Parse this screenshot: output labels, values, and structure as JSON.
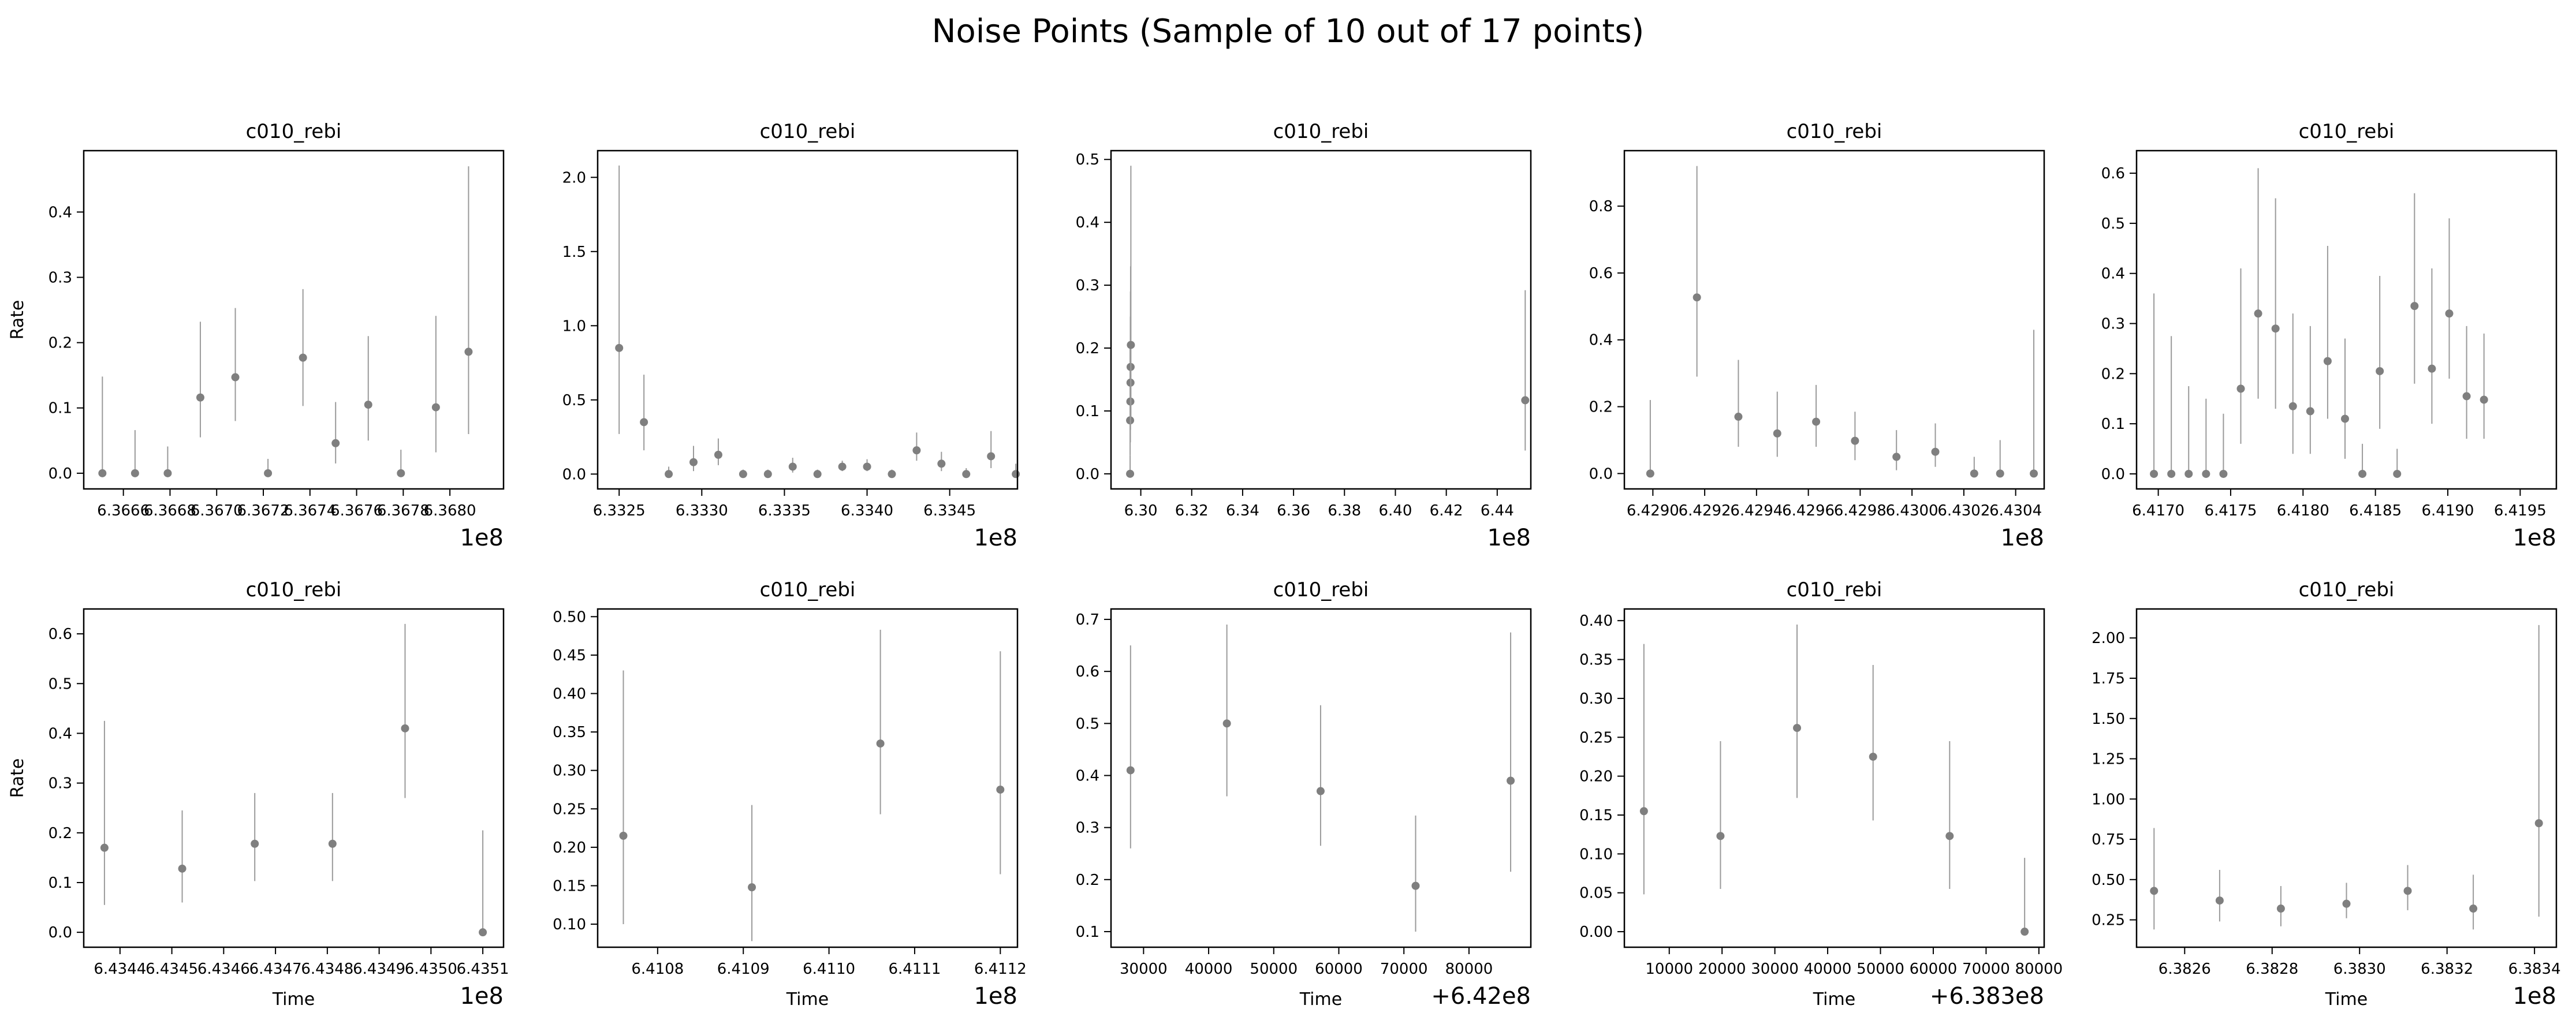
{
  "title": "Noise Points (Sample of 10 out of 17 points)",
  "colors": {
    "marker": "#7f7f7f",
    "errorbar": "#9a9a9a",
    "axes": "#000000"
  },
  "chart_data": [
    {
      "type": "scatter",
      "title": "c010_rebi",
      "xlabel": "",
      "ylabel": "Rate",
      "offset_text": "1e8",
      "xlim": [
        6.36643,
        6.36823
      ],
      "ylim": [
        -0.024,
        0.494
      ],
      "xticks": [
        6.3666,
        6.3668,
        6.367,
        6.3672,
        6.3674,
        6.3676,
        6.3678,
        6.368
      ],
      "xticklabels": [
        "6.3666",
        "6.3668",
        "6.3670",
        "6.3672",
        "6.3674",
        "6.3676",
        "6.3678",
        "6.3680"
      ],
      "yticks": [
        0,
        0.1,
        0.2,
        0.3,
        0.4
      ],
      "yticklabels": [
        "0.0",
        "0.1",
        "0.2",
        "0.3",
        "0.4"
      ],
      "points": [
        {
          "x": 6.36651,
          "y": 0.0,
          "lo": 0.0,
          "hi": 0.148
        },
        {
          "x": 6.36665,
          "y": 0.0,
          "lo": 0.0,
          "hi": 0.066
        },
        {
          "x": 6.36679,
          "y": 0.0,
          "lo": 0.0,
          "hi": 0.041
        },
        {
          "x": 6.36693,
          "y": 0.116,
          "lo": 0.055,
          "hi": 0.232
        },
        {
          "x": 6.36708,
          "y": 0.147,
          "lo": 0.08,
          "hi": 0.253
        },
        {
          "x": 6.36722,
          "y": 0.0,
          "lo": 0.0,
          "hi": 0.022
        },
        {
          "x": 6.36737,
          "y": 0.177,
          "lo": 0.103,
          "hi": 0.282
        },
        {
          "x": 6.36751,
          "y": 0.046,
          "lo": 0.015,
          "hi": 0.109
        },
        {
          "x": 6.36765,
          "y": 0.105,
          "lo": 0.05,
          "hi": 0.21
        },
        {
          "x": 6.36779,
          "y": 0.0,
          "lo": 0.0,
          "hi": 0.036
        },
        {
          "x": 6.36794,
          "y": 0.101,
          "lo": 0.032,
          "hi": 0.241
        },
        {
          "x": 6.36808,
          "y": 0.186,
          "lo": 0.06,
          "hi": 0.47
        }
      ]
    },
    {
      "type": "scatter",
      "title": "c010_rebi",
      "xlabel": "",
      "ylabel": "",
      "offset_text": "1e8",
      "xlim": [
        6.33237,
        6.33491
      ],
      "ylim": [
        -0.1,
        2.18
      ],
      "xticks": [
        6.3325,
        6.333,
        6.3335,
        6.334,
        6.3345
      ],
      "xticklabels": [
        "6.3325",
        "6.3330",
        "6.3335",
        "6.3340",
        "6.3345"
      ],
      "yticks": [
        0,
        0.5,
        1.0,
        1.5,
        2.0
      ],
      "yticklabels": [
        "0.0",
        "0.5",
        "1.0",
        "1.5",
        "2.0"
      ],
      "points": [
        {
          "x": 6.3325,
          "y": 0.85,
          "lo": 0.27,
          "hi": 2.08
        },
        {
          "x": 6.33265,
          "y": 0.35,
          "lo": 0.16,
          "hi": 0.67
        },
        {
          "x": 6.3328,
          "y": 0.0,
          "lo": 0.0,
          "hi": 0.05
        },
        {
          "x": 6.33295,
          "y": 0.08,
          "lo": 0.02,
          "hi": 0.19
        },
        {
          "x": 6.3331,
          "y": 0.13,
          "lo": 0.06,
          "hi": 0.24
        },
        {
          "x": 6.33325,
          "y": 0.0,
          "lo": 0.0,
          "hi": 0.03
        },
        {
          "x": 6.3334,
          "y": 0.0,
          "lo": 0.0,
          "hi": 0.03
        },
        {
          "x": 6.33355,
          "y": 0.05,
          "lo": 0.01,
          "hi": 0.11
        },
        {
          "x": 6.3337,
          "y": 0.0,
          "lo": 0.0,
          "hi": 0.03
        },
        {
          "x": 6.33385,
          "y": 0.05,
          "lo": 0.02,
          "hi": 0.09
        },
        {
          "x": 6.334,
          "y": 0.05,
          "lo": 0.02,
          "hi": 0.1
        },
        {
          "x": 6.33415,
          "y": 0.0,
          "lo": 0.0,
          "hi": 0.03
        },
        {
          "x": 6.3343,
          "y": 0.16,
          "lo": 0.09,
          "hi": 0.28
        },
        {
          "x": 6.33445,
          "y": 0.07,
          "lo": 0.02,
          "hi": 0.15
        },
        {
          "x": 6.3346,
          "y": 0.0,
          "lo": 0.0,
          "hi": 0.04
        },
        {
          "x": 6.33475,
          "y": 0.12,
          "lo": 0.04,
          "hi": 0.29
        },
        {
          "x": 6.3349,
          "y": 0.0,
          "lo": 0.0,
          "hi": 0.07
        }
      ]
    },
    {
      "type": "scatter",
      "title": "c010_rebi",
      "xlabel": "",
      "ylabel": "",
      "offset_text": "1e8",
      "xlim": [
        6.2883,
        6.4532
      ],
      "ylim": [
        -0.024,
        0.514
      ],
      "xticks": [
        6.3,
        6.32,
        6.34,
        6.36,
        6.38,
        6.4,
        6.42,
        6.44
      ],
      "xticklabels": [
        "6.30",
        "6.32",
        "6.34",
        "6.36",
        "6.38",
        "6.40",
        "6.42",
        "6.44"
      ],
      "yticks": [
        0,
        0.1,
        0.2,
        0.3,
        0.4,
        0.5
      ],
      "yticklabels": [
        "0.0",
        "0.1",
        "0.2",
        "0.3",
        "0.4",
        "0.5"
      ],
      "points": [
        {
          "x": 6.2958,
          "y": 0.0,
          "lo": 0.0,
          "hi": 0.03
        },
        {
          "x": 6.2958,
          "y": 0.085,
          "lo": 0.03,
          "hi": 0.2
        },
        {
          "x": 6.2959,
          "y": 0.115,
          "lo": 0.05,
          "hi": 0.25
        },
        {
          "x": 6.29595,
          "y": 0.145,
          "lo": 0.07,
          "hi": 0.29
        },
        {
          "x": 6.296,
          "y": 0.17,
          "lo": 0.08,
          "hi": 0.33
        },
        {
          "x": 6.2961,
          "y": 0.205,
          "lo": 0.09,
          "hi": 0.49
        },
        {
          "x": 6.451,
          "y": 0.117,
          "lo": 0.037,
          "hi": 0.292
        }
      ]
    },
    {
      "type": "scatter",
      "title": "c010_rebi",
      "xlabel": "",
      "ylabel": "",
      "offset_text": "1e8",
      "xlim": [
        6.42889,
        6.43051
      ],
      "ylim": [
        -0.046,
        0.966
      ],
      "xticks": [
        6.429,
        6.4292,
        6.4294,
        6.4296,
        6.4298,
        6.43,
        6.4302,
        6.4304
      ],
      "xticklabels": [
        "6.4290",
        "6.4292",
        "6.4294",
        "6.4296",
        "6.4298",
        "6.4300",
        "6.4302",
        "6.4304"
      ],
      "yticks": [
        0,
        0.2,
        0.4,
        0.6,
        0.8
      ],
      "yticklabels": [
        "0.0",
        "0.2",
        "0.4",
        "0.6",
        "0.8"
      ],
      "points": [
        {
          "x": 6.42899,
          "y": 0.0,
          "lo": 0.0,
          "hi": 0.22
        },
        {
          "x": 6.42917,
          "y": 0.527,
          "lo": 0.29,
          "hi": 0.92
        },
        {
          "x": 6.42933,
          "y": 0.17,
          "lo": 0.08,
          "hi": 0.34
        },
        {
          "x": 6.42948,
          "y": 0.12,
          "lo": 0.05,
          "hi": 0.245
        },
        {
          "x": 6.42963,
          "y": 0.155,
          "lo": 0.08,
          "hi": 0.265
        },
        {
          "x": 6.42978,
          "y": 0.098,
          "lo": 0.04,
          "hi": 0.185
        },
        {
          "x": 6.42994,
          "y": 0.05,
          "lo": 0.01,
          "hi": 0.13
        },
        {
          "x": 6.43009,
          "y": 0.065,
          "lo": 0.02,
          "hi": 0.15
        },
        {
          "x": 6.43024,
          "y": 0.0,
          "lo": 0.0,
          "hi": 0.05
        },
        {
          "x": 6.43034,
          "y": 0.0,
          "lo": 0.0,
          "hi": 0.1
        },
        {
          "x": 6.43047,
          "y": 0.0,
          "lo": 0.0,
          "hi": 0.43
        }
      ]
    },
    {
      "type": "scatter",
      "title": "c010_rebi",
      "xlabel": "",
      "ylabel": "",
      "offset_text": "1e8",
      "xlim": [
        6.41685,
        6.41975
      ],
      "ylim": [
        -0.03,
        0.645
      ],
      "xticks": [
        6.417,
        6.4175,
        6.418,
        6.4185,
        6.419,
        6.4195
      ],
      "xticklabels": [
        "6.4170",
        "6.4175",
        "6.4180",
        "6.4185",
        "6.4190",
        "6.4195"
      ],
      "yticks": [
        0,
        0.1,
        0.2,
        0.3,
        0.4,
        0.5,
        0.6
      ],
      "yticklabels": [
        "0.0",
        "0.1",
        "0.2",
        "0.3",
        "0.4",
        "0.5",
        "0.6"
      ],
      "points": [
        {
          "x": 6.41697,
          "y": 0.0,
          "lo": 0.0,
          "hi": 0.36
        },
        {
          "x": 6.41709,
          "y": 0.0,
          "lo": 0.0,
          "hi": 0.275
        },
        {
          "x": 6.41721,
          "y": 0.0,
          "lo": 0.0,
          "hi": 0.175
        },
        {
          "x": 6.41733,
          "y": 0.0,
          "lo": 0.0,
          "hi": 0.15
        },
        {
          "x": 6.41745,
          "y": 0.0,
          "lo": 0.0,
          "hi": 0.12
        },
        {
          "x": 6.41757,
          "y": 0.17,
          "lo": 0.06,
          "hi": 0.41
        },
        {
          "x": 6.41769,
          "y": 0.32,
          "lo": 0.15,
          "hi": 0.61
        },
        {
          "x": 6.41781,
          "y": 0.29,
          "lo": 0.13,
          "hi": 0.55
        },
        {
          "x": 6.41793,
          "y": 0.135,
          "lo": 0.04,
          "hi": 0.32
        },
        {
          "x": 6.41805,
          "y": 0.125,
          "lo": 0.04,
          "hi": 0.295
        },
        {
          "x": 6.41817,
          "y": 0.225,
          "lo": 0.11,
          "hi": 0.455
        },
        {
          "x": 6.41829,
          "y": 0.11,
          "lo": 0.03,
          "hi": 0.27
        },
        {
          "x": 6.41841,
          "y": 0.0,
          "lo": 0.0,
          "hi": 0.06
        },
        {
          "x": 6.41853,
          "y": 0.205,
          "lo": 0.09,
          "hi": 0.395
        },
        {
          "x": 6.41865,
          "y": 0.0,
          "lo": 0.0,
          "hi": 0.05
        },
        {
          "x": 6.41877,
          "y": 0.335,
          "lo": 0.18,
          "hi": 0.56
        },
        {
          "x": 6.41889,
          "y": 0.21,
          "lo": 0.1,
          "hi": 0.41
        },
        {
          "x": 6.41901,
          "y": 0.32,
          "lo": 0.19,
          "hi": 0.51
        },
        {
          "x": 6.41913,
          "y": 0.155,
          "lo": 0.07,
          "hi": 0.295
        },
        {
          "x": 6.41925,
          "y": 0.148,
          "lo": 0.07,
          "hi": 0.28
        }
      ]
    },
    {
      "type": "scatter",
      "title": "c010_rebi",
      "xlabel": "Time",
      "ylabel": "Rate",
      "offset_text": "1e8",
      "xlim": [
        6.43433,
        6.43514
      ],
      "ylim": [
        -0.03,
        0.65
      ],
      "xticks": [
        6.4344,
        6.4345,
        6.4346,
        6.4347,
        6.4348,
        6.4349,
        6.435,
        6.4351
      ],
      "xticklabels": [
        "6.4344",
        "6.4345",
        "6.4346",
        "6.4347",
        "6.4348",
        "6.4349",
        "6.4350",
        "6.4351"
      ],
      "yticks": [
        0,
        0.1,
        0.2,
        0.3,
        0.4,
        0.5,
        0.6
      ],
      "yticklabels": [
        "0.0",
        "0.1",
        "0.2",
        "0.3",
        "0.4",
        "0.5",
        "0.6"
      ],
      "points": [
        {
          "x": 6.43437,
          "y": 0.17,
          "lo": 0.055,
          "hi": 0.425
        },
        {
          "x": 6.43452,
          "y": 0.128,
          "lo": 0.06,
          "hi": 0.245
        },
        {
          "x": 6.43466,
          "y": 0.178,
          "lo": 0.103,
          "hi": 0.28
        },
        {
          "x": 6.43481,
          "y": 0.178,
          "lo": 0.103,
          "hi": 0.28
        },
        {
          "x": 6.43495,
          "y": 0.41,
          "lo": 0.27,
          "hi": 0.62
        },
        {
          "x": 6.4351,
          "y": 0.0,
          "lo": 0.0,
          "hi": 0.205
        }
      ]
    },
    {
      "type": "scatter",
      "title": "c010_rebi",
      "xlabel": "Time",
      "ylabel": "",
      "offset_text": "1e8",
      "xlim": [
        6.41073,
        6.41122
      ],
      "ylim": [
        0.07,
        0.51
      ],
      "xticks": [
        6.4108,
        6.4109,
        6.411,
        6.4111,
        6.4112
      ],
      "xticklabels": [
        "6.4108",
        "6.4109",
        "6.4110",
        "6.4111",
        "6.4112"
      ],
      "yticks": [
        0.1,
        0.15,
        0.2,
        0.25,
        0.3,
        0.35,
        0.4,
        0.45,
        0.5
      ],
      "yticklabels": [
        "0.10",
        "0.15",
        "0.20",
        "0.25",
        "0.30",
        "0.35",
        "0.40",
        "0.45",
        "0.50"
      ],
      "points": [
        {
          "x": 6.41076,
          "y": 0.215,
          "lo": 0.1,
          "hi": 0.43
        },
        {
          "x": 6.41091,
          "y": 0.148,
          "lo": 0.078,
          "hi": 0.255
        },
        {
          "x": 6.41106,
          "y": 0.335,
          "lo": 0.243,
          "hi": 0.483
        },
        {
          "x": 6.4112,
          "y": 0.275,
          "lo": 0.165,
          "hi": 0.455
        }
      ]
    },
    {
      "type": "scatter",
      "title": "c010_rebi",
      "xlabel": "Time",
      "ylabel": "",
      "offset_text": "+6.42e8",
      "xlim": [
        25000,
        89500
      ],
      "ylim": [
        0.07,
        0.72
      ],
      "xticks": [
        30000,
        40000,
        50000,
        60000,
        70000,
        80000
      ],
      "xticklabels": [
        "30000",
        "40000",
        "50000",
        "60000",
        "70000",
        "80000"
      ],
      "yticks": [
        0.1,
        0.2,
        0.3,
        0.4,
        0.5,
        0.6,
        0.7
      ],
      "yticklabels": [
        "0.1",
        "0.2",
        "0.3",
        "0.4",
        "0.5",
        "0.6",
        "0.7"
      ],
      "points": [
        {
          "x": 28000,
          "y": 0.41,
          "lo": 0.26,
          "hi": 0.65
        },
        {
          "x": 42800,
          "y": 0.5,
          "lo": 0.36,
          "hi": 0.69
        },
        {
          "x": 57200,
          "y": 0.37,
          "lo": 0.265,
          "hi": 0.535
        },
        {
          "x": 71800,
          "y": 0.188,
          "lo": 0.1,
          "hi": 0.323
        },
        {
          "x": 86400,
          "y": 0.39,
          "lo": 0.215,
          "hi": 0.675
        }
      ]
    },
    {
      "type": "scatter",
      "title": "c010_rebi",
      "xlabel": "Time",
      "ylabel": "",
      "offset_text": "+6.383e8",
      "xlim": [
        1500,
        81000
      ],
      "ylim": [
        -0.02,
        0.415
      ],
      "xticks": [
        10000,
        20000,
        30000,
        40000,
        50000,
        60000,
        70000,
        80000
      ],
      "xticklabels": [
        "10000",
        "20000",
        "30000",
        "40000",
        "50000",
        "60000",
        "70000",
        "80000"
      ],
      "yticks": [
        0,
        0.05,
        0.1,
        0.15,
        0.2,
        0.25,
        0.3,
        0.35,
        0.4
      ],
      "yticklabels": [
        "0.00",
        "0.05",
        "0.10",
        "0.15",
        "0.20",
        "0.25",
        "0.30",
        "0.35",
        "0.40"
      ],
      "points": [
        {
          "x": 5200,
          "y": 0.155,
          "lo": 0.048,
          "hi": 0.37
        },
        {
          "x": 19700,
          "y": 0.123,
          "lo": 0.055,
          "hi": 0.245
        },
        {
          "x": 34200,
          "y": 0.262,
          "lo": 0.172,
          "hi": 0.395
        },
        {
          "x": 48600,
          "y": 0.225,
          "lo": 0.143,
          "hi": 0.343
        },
        {
          "x": 63100,
          "y": 0.123,
          "lo": 0.055,
          "hi": 0.245
        },
        {
          "x": 77300,
          "y": 0.0,
          "lo": 0.0,
          "hi": 0.095
        }
      ]
    },
    {
      "type": "scatter",
      "title": "c010_rebi",
      "xlabel": "Time",
      "ylabel": "",
      "offset_text": "1e8",
      "xlim": [
        6.38249,
        6.38345
      ],
      "ylim": [
        0.08,
        2.18
      ],
      "xticks": [
        6.3826,
        6.3828,
        6.383,
        6.3832,
        6.3834
      ],
      "xticklabels": [
        "6.3826",
        "6.3828",
        "6.3830",
        "6.3832",
        "6.3834"
      ],
      "yticks": [
        0.25,
        0.5,
        0.75,
        1.0,
        1.25,
        1.5,
        1.75,
        2.0
      ],
      "yticklabels": [
        "0.25",
        "0.50",
        "0.75",
        "1.00",
        "1.25",
        "1.50",
        "1.75",
        "2.00"
      ],
      "points": [
        {
          "x": 6.38253,
          "y": 0.43,
          "lo": 0.19,
          "hi": 0.82
        },
        {
          "x": 6.38268,
          "y": 0.37,
          "lo": 0.24,
          "hi": 0.56
        },
        {
          "x": 6.38282,
          "y": 0.32,
          "lo": 0.21,
          "hi": 0.46
        },
        {
          "x": 6.38297,
          "y": 0.35,
          "lo": 0.26,
          "hi": 0.48
        },
        {
          "x": 6.38311,
          "y": 0.43,
          "lo": 0.31,
          "hi": 0.59
        },
        {
          "x": 6.38326,
          "y": 0.32,
          "lo": 0.19,
          "hi": 0.53
        },
        {
          "x": 6.38341,
          "y": 0.85,
          "lo": 0.27,
          "hi": 2.08
        }
      ]
    }
  ]
}
